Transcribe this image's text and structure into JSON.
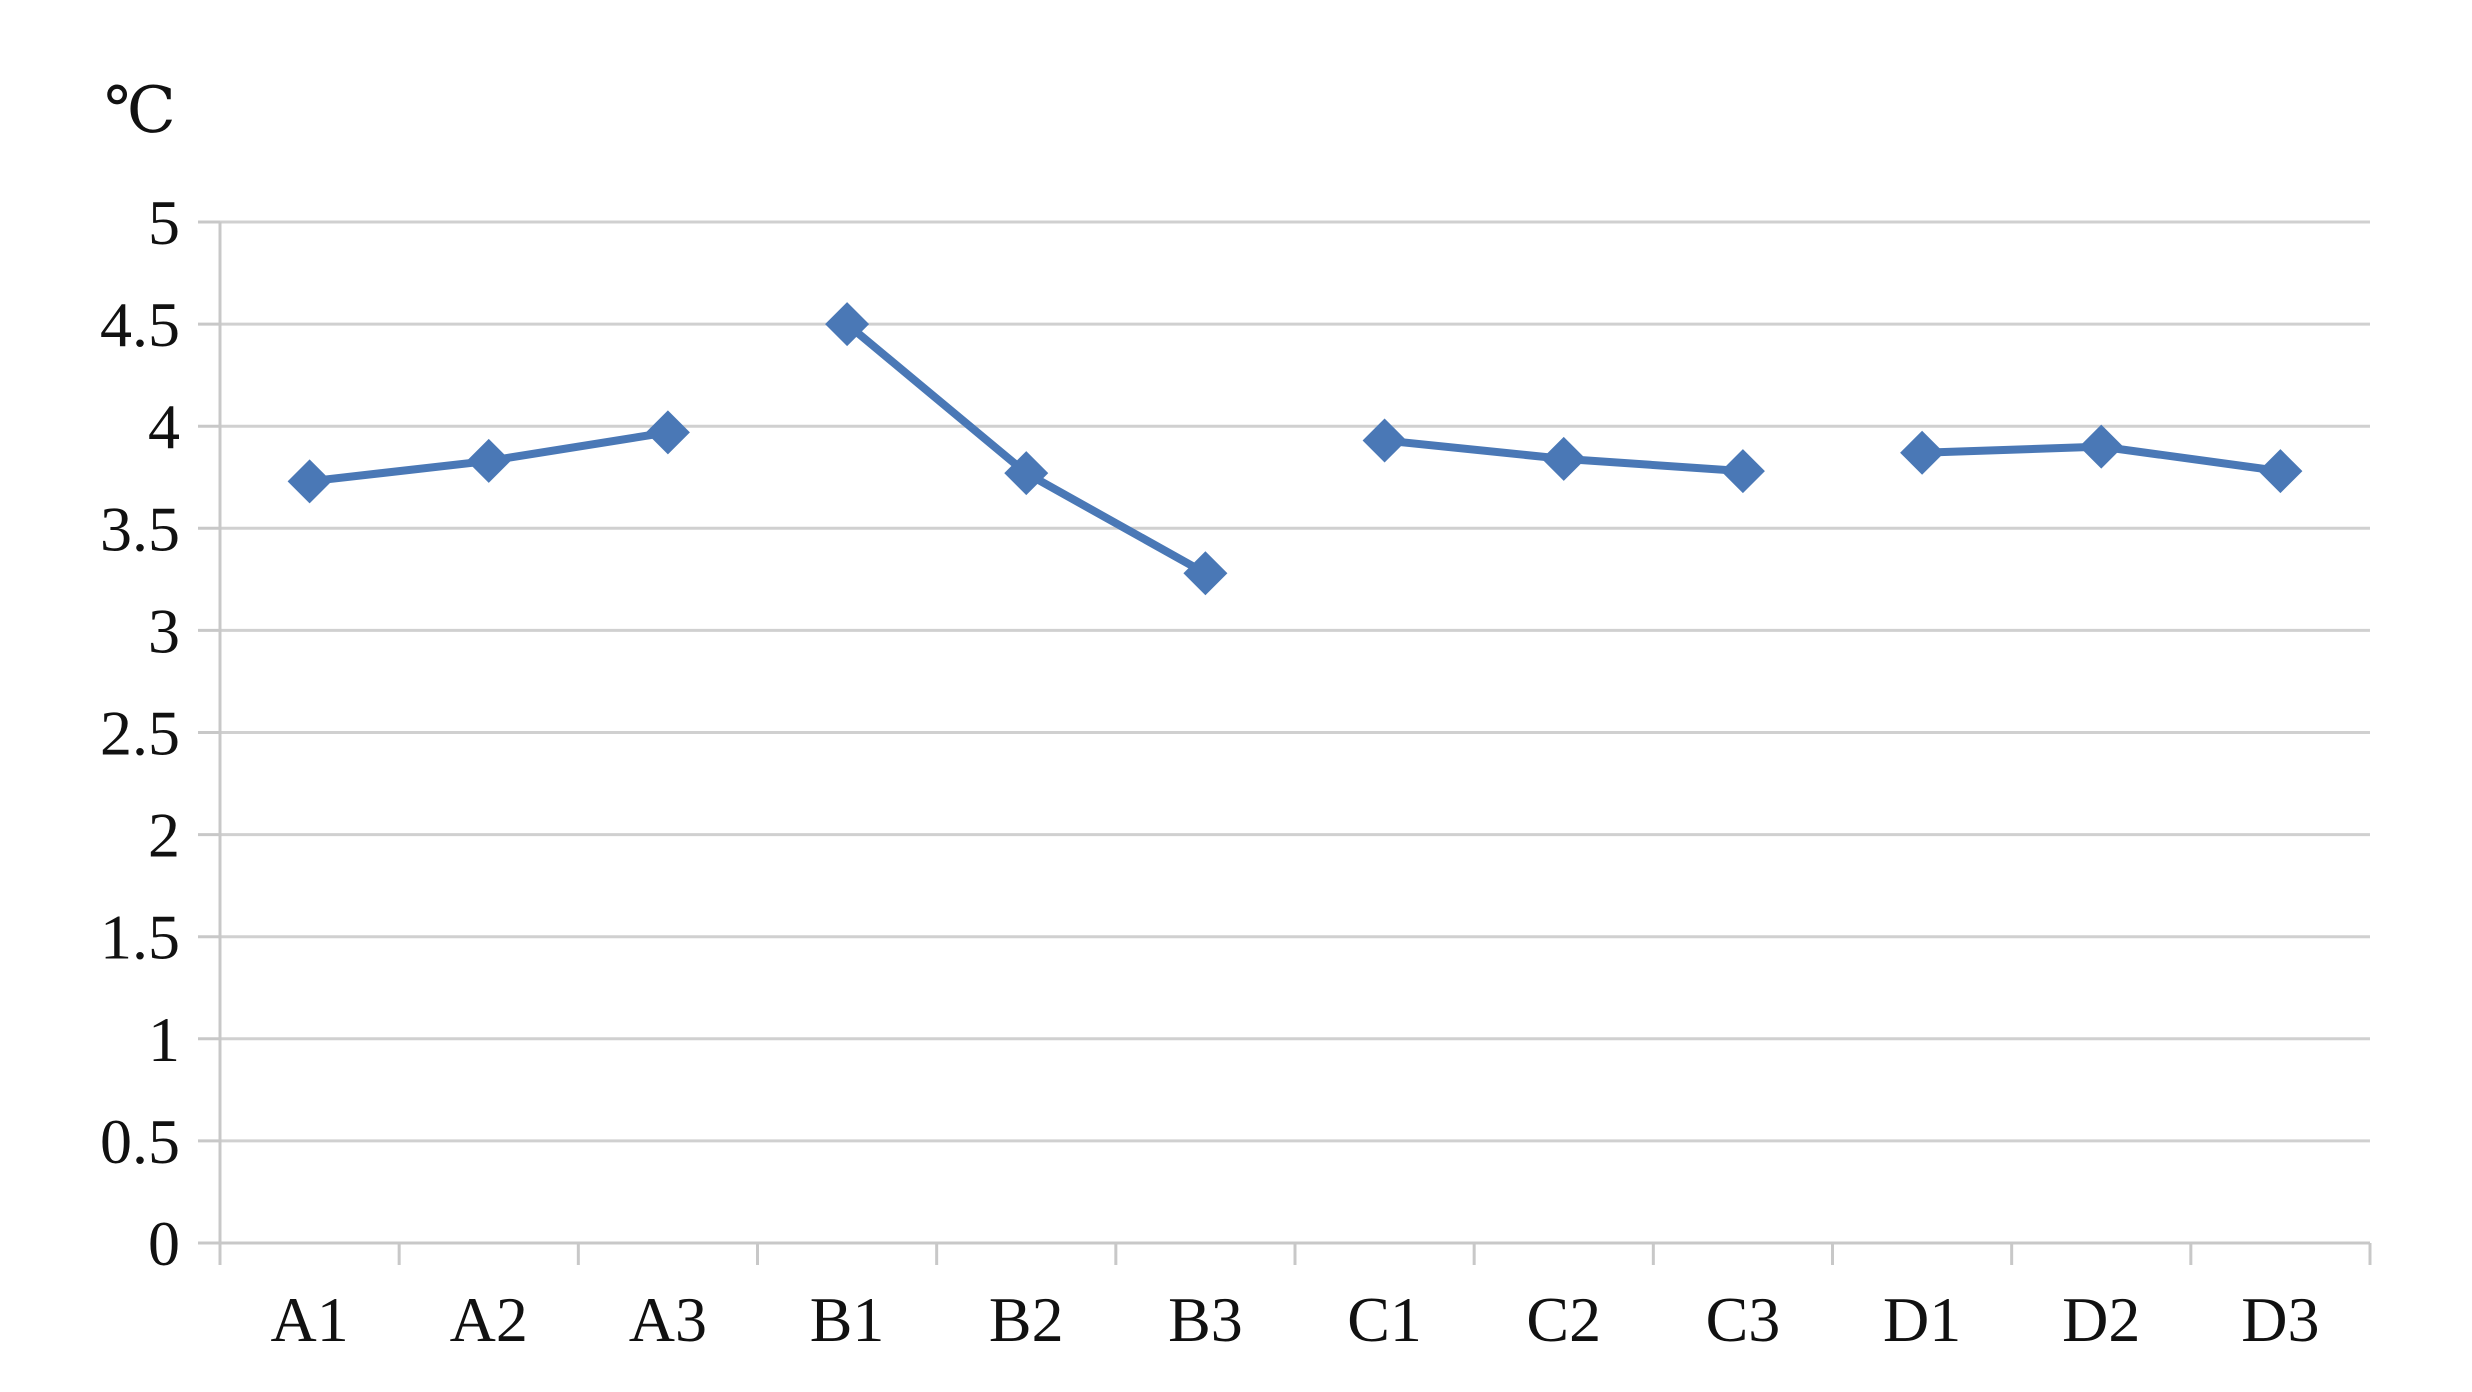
{
  "chart_data": {
    "type": "line",
    "unit_label": "℃",
    "categories": [
      "A1",
      "A2",
      "A3",
      "B1",
      "B2",
      "B3",
      "C1",
      "C2",
      "C3",
      "D1",
      "D2",
      "D3"
    ],
    "groups": [
      {
        "categories": [
          "A1",
          "A2",
          "A3"
        ],
        "values": [
          3.73,
          3.83,
          3.97
        ]
      },
      {
        "categories": [
          "B1",
          "B2",
          "B3"
        ],
        "values": [
          4.5,
          3.77,
          3.28
        ]
      },
      {
        "categories": [
          "C1",
          "C2",
          "C3"
        ],
        "values": [
          3.93,
          3.84,
          3.78
        ]
      },
      {
        "categories": [
          "D1",
          "D2",
          "D3"
        ],
        "values": [
          3.87,
          3.9,
          3.78
        ]
      }
    ],
    "ylim": [
      0,
      5
    ],
    "yticks": [
      "0",
      "0.5",
      "1",
      "1.5",
      "2",
      "2.5",
      "3",
      "3.5",
      "4",
      "4.5",
      "5"
    ],
    "grid": true,
    "marker": "diamond",
    "color": "#4a78b6"
  }
}
